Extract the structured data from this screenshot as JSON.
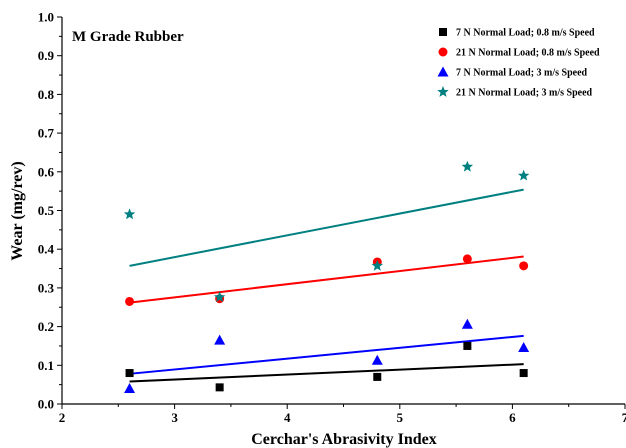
{
  "chart_data": {
    "type": "scatter",
    "title": "M Grade Rubber",
    "xlabel": "Cerchar's Abrasivity Index",
    "ylabel": "Wear (mg/rev)",
    "xlim": [
      2,
      7
    ],
    "ylim": [
      0,
      1.0
    ],
    "xticks": [
      "2",
      "3",
      "4",
      "5",
      "6",
      "7"
    ],
    "yticks": [
      "0.0",
      "0.1",
      "0.2",
      "0.3",
      "0.4",
      "0.5",
      "0.6",
      "0.7",
      "0.8",
      "0.9",
      "1.0"
    ],
    "grid": false,
    "legend_position": "top-right",
    "series": [
      {
        "name": "7 N Normal Load; 0.8 m/s Speed",
        "marker": "square",
        "color": "#000000",
        "x": [
          2.6,
          3.4,
          4.8,
          5.6,
          6.1
        ],
        "y": [
          0.08,
          0.043,
          0.07,
          0.15,
          0.08
        ],
        "fit": [
          [
            2.6,
            0.058
          ],
          [
            6.1,
            0.103
          ]
        ]
      },
      {
        "name": "21 N Normal Load; 0.8 m/s Speed",
        "marker": "circle",
        "color": "#ff0000",
        "x": [
          2.6,
          3.4,
          4.8,
          5.6,
          6.1
        ],
        "y": [
          0.265,
          0.272,
          0.367,
          0.375,
          0.357
        ],
        "fit": [
          [
            2.6,
            0.262
          ],
          [
            6.1,
            0.381
          ]
        ]
      },
      {
        "name": "7 N Normal Load; 3 m/s Speed",
        "marker": "triangle",
        "color": "#0000ff",
        "x": [
          2.6,
          3.4,
          4.8,
          5.6,
          6.1
        ],
        "y": [
          0.04,
          0.165,
          0.113,
          0.206,
          0.146
        ],
        "fit": [
          [
            2.6,
            0.078
          ],
          [
            6.1,
            0.176
          ]
        ]
      },
      {
        "name": "21 N Normal Load; 3 m/s Speed",
        "marker": "star",
        "color": "#008080",
        "x": [
          2.6,
          3.4,
          4.8,
          5.6,
          6.1
        ],
        "y": [
          0.49,
          0.276,
          0.357,
          0.613,
          0.59
        ],
        "fit": [
          [
            2.6,
            0.357
          ],
          [
            6.1,
            0.554
          ]
        ]
      }
    ]
  }
}
